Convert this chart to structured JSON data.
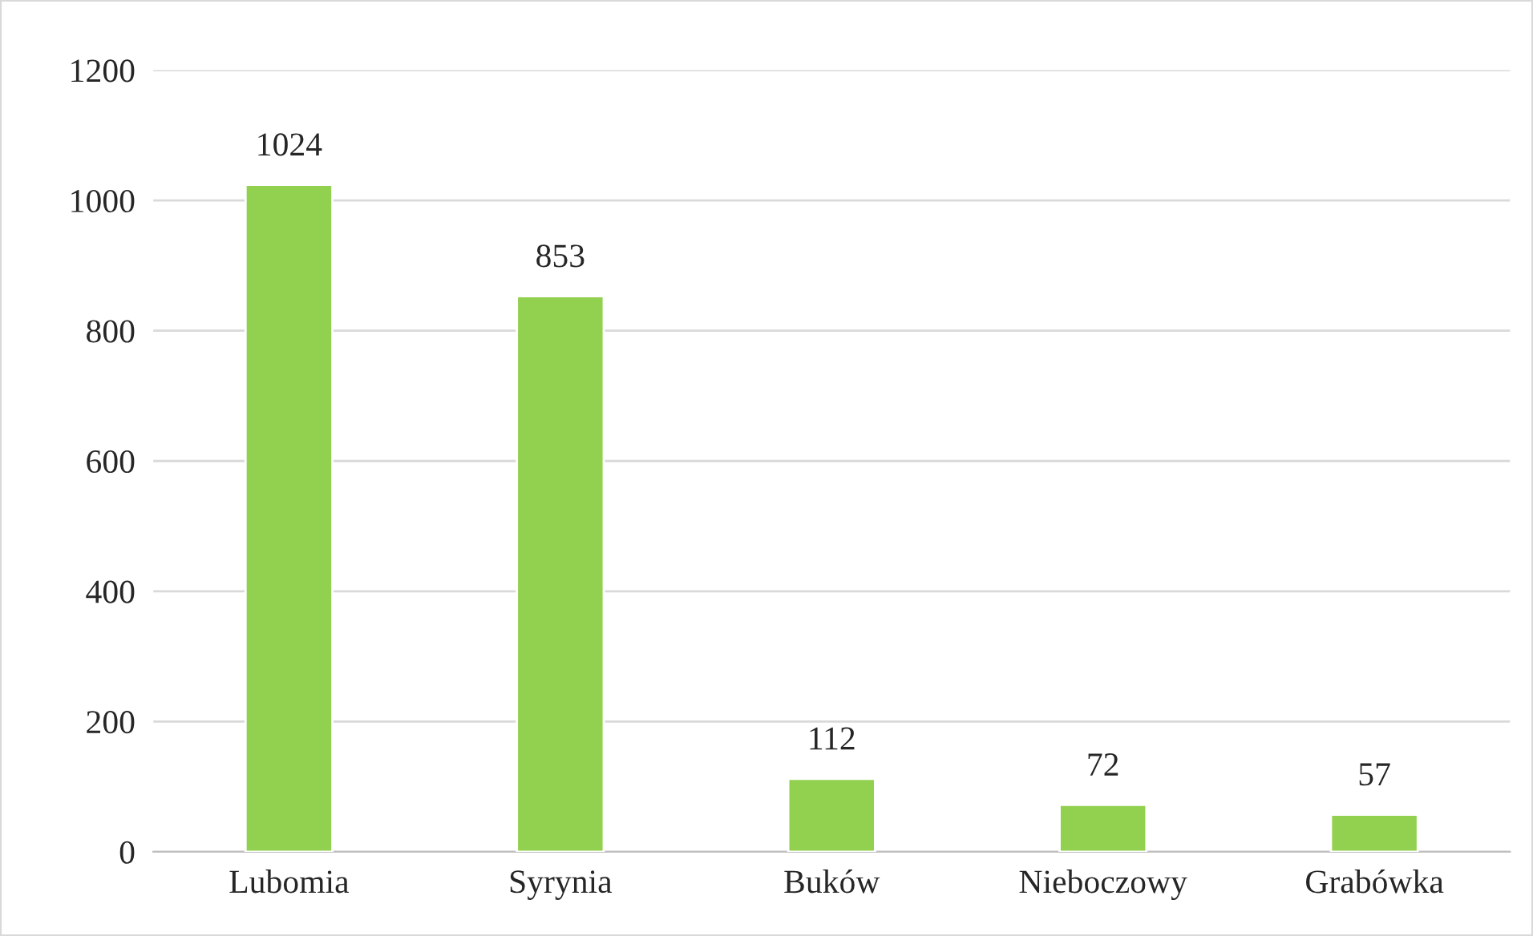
{
  "chart_data": {
    "type": "bar",
    "categories": [
      "Lubomia",
      "Syrynia",
      "Buków",
      "Nieboczowy",
      "Grabówka"
    ],
    "values": [
      1024,
      853,
      112,
      72,
      57
    ],
    "color": "#92d050",
    "ylim": [
      0,
      1200
    ],
    "yticks": [
      0,
      200,
      400,
      600,
      800,
      1000,
      1200
    ],
    "grid": "y",
    "data_labels": true
  }
}
